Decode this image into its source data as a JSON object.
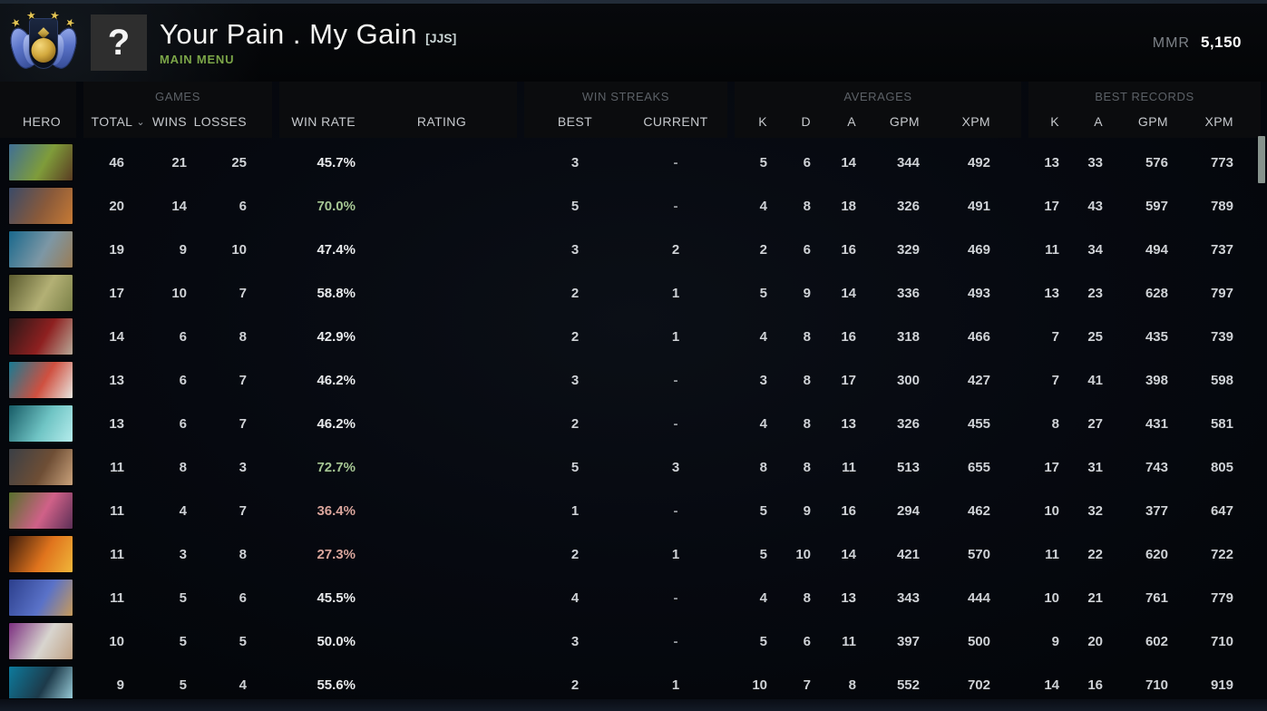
{
  "header": {
    "player_name": "Your Pain . My Gain",
    "player_tag": "[JJS]",
    "nav_label": "MAIN MENU",
    "avatar_glyph": "?",
    "mmr_label": "MMR",
    "mmr_value": "5,150",
    "medal": {
      "name": "rank-medal",
      "stars": 4
    }
  },
  "table": {
    "groups": {
      "games": "GAMES",
      "win_streaks": "WIN STREAKS",
      "averages": "AVERAGES",
      "best_records": "BEST RECORDS"
    },
    "columns": {
      "hero": "HERO",
      "total": "TOTAL",
      "wins": "WINS",
      "losses": "LOSSES",
      "win_rate": "WIN RATE",
      "rating": "RATING",
      "best": "BEST",
      "current": "CURRENT",
      "k": "K",
      "d": "D",
      "a": "A",
      "gpm": "GPM",
      "xpm": "XPM"
    },
    "sort": {
      "column": "total",
      "indicator": "⌄"
    },
    "rows": [
      {
        "hero": "hoodwink",
        "portrait": [
          "#3f6f95",
          "#7f9c3a",
          "#5a3c22"
        ],
        "total": 46,
        "wins": 21,
        "losses": 25,
        "win_rate": "45.7%",
        "win_rate_pct": 45.7,
        "tone": "neu",
        "best": 3,
        "current": "-",
        "k": 5,
        "d": 6,
        "a": 14,
        "gpm": 344,
        "xpm": 492,
        "bk": 13,
        "ba": 33,
        "bgpm": 576,
        "bxpm": 773
      },
      {
        "hero": "marci",
        "portrait": [
          "#3a4a68",
          "#8a5a3a",
          "#c77a35"
        ],
        "total": 20,
        "wins": 14,
        "losses": 6,
        "win_rate": "70.0%",
        "win_rate_pct": 70.0,
        "tone": "pos",
        "best": 5,
        "current": "-",
        "k": 4,
        "d": 8,
        "a": 18,
        "gpm": 326,
        "xpm": 491,
        "bk": 17,
        "ba": 43,
        "bgpm": 597,
        "bxpm": 789
      },
      {
        "hero": "magnus",
        "portrait": [
          "#19688c",
          "#7d97a5",
          "#9a7c55"
        ],
        "total": 19,
        "wins": 9,
        "losses": 10,
        "win_rate": "47.4%",
        "win_rate_pct": 47.4,
        "tone": "neu",
        "best": 3,
        "current": 2,
        "k": 2,
        "d": 6,
        "a": 16,
        "gpm": 329,
        "xpm": 469,
        "bk": 11,
        "ba": 34,
        "bgpm": 494,
        "bxpm": 737
      },
      {
        "hero": "pudge",
        "portrait": [
          "#5a5a2e",
          "#b3b075",
          "#7a8047"
        ],
        "total": 17,
        "wins": 10,
        "losses": 7,
        "win_rate": "58.8%",
        "win_rate_pct": 58.8,
        "tone": "neu",
        "best": 2,
        "current": 1,
        "k": 5,
        "d": 9,
        "a": 14,
        "gpm": 336,
        "xpm": 493,
        "bk": 13,
        "ba": 23,
        "bgpm": 628,
        "bxpm": 797
      },
      {
        "hero": "bloodseeker",
        "portrait": [
          "#2a1818",
          "#8e2020",
          "#b8a998"
        ],
        "total": 14,
        "wins": 6,
        "losses": 8,
        "win_rate": "42.9%",
        "win_rate_pct": 42.9,
        "tone": "neu",
        "best": 2,
        "current": 1,
        "k": 4,
        "d": 8,
        "a": 16,
        "gpm": 318,
        "xpm": 466,
        "bk": 7,
        "ba": 25,
        "bgpm": 435,
        "bxpm": 739
      },
      {
        "hero": "troll-warlord",
        "portrait": [
          "#177a93",
          "#cf5040",
          "#e8e6e0"
        ],
        "total": 13,
        "wins": 6,
        "losses": 7,
        "win_rate": "46.2%",
        "win_rate_pct": 46.2,
        "tone": "neu",
        "best": 3,
        "current": "-",
        "k": 3,
        "d": 8,
        "a": 17,
        "gpm": 300,
        "xpm": 427,
        "bk": 7,
        "ba": 41,
        "bgpm": 398,
        "bxpm": 598
      },
      {
        "hero": "winter-wyvern",
        "portrait": [
          "#175b66",
          "#6fc4c4",
          "#b5ecec"
        ],
        "total": 13,
        "wins": 6,
        "losses": 7,
        "win_rate": "46.2%",
        "win_rate_pct": 46.2,
        "tone": "neu",
        "best": 2,
        "current": "-",
        "k": 4,
        "d": 8,
        "a": 13,
        "gpm": 326,
        "xpm": 455,
        "bk": 8,
        "ba": 27,
        "bgpm": 431,
        "bxpm": 581
      },
      {
        "hero": "kunkka",
        "portrait": [
          "#3a3f46",
          "#6e4e35",
          "#caa27b"
        ],
        "total": 11,
        "wins": 8,
        "losses": 3,
        "win_rate": "72.7%",
        "win_rate_pct": 72.7,
        "tone": "pos",
        "best": 5,
        "current": 3,
        "k": 8,
        "d": 8,
        "a": 11,
        "gpm": 513,
        "xpm": 655,
        "bk": 17,
        "ba": 31,
        "bgpm": 743,
        "bxpm": 805
      },
      {
        "hero": "dark-willow",
        "portrait": [
          "#57702c",
          "#d06188",
          "#5c2f56"
        ],
        "total": 11,
        "wins": 4,
        "losses": 7,
        "win_rate": "36.4%",
        "win_rate_pct": 36.4,
        "tone": "neg",
        "best": 1,
        "current": "-",
        "k": 5,
        "d": 9,
        "a": 16,
        "gpm": 294,
        "xpm": 462,
        "bk": 10,
        "ba": 32,
        "bgpm": 377,
        "bxpm": 647
      },
      {
        "hero": "clinkz",
        "portrait": [
          "#3a1b0c",
          "#e0741d",
          "#f0b73a"
        ],
        "total": 11,
        "wins": 3,
        "losses": 8,
        "win_rate": "27.3%",
        "win_rate_pct": 27.3,
        "tone": "neg",
        "best": 2,
        "current": 1,
        "k": 5,
        "d": 10,
        "a": 14,
        "gpm": 421,
        "xpm": 570,
        "bk": 11,
        "ba": 22,
        "bgpm": 620,
        "bxpm": 722
      },
      {
        "hero": "ogre-magi",
        "portrait": [
          "#2c3f8c",
          "#5a72c8",
          "#c89a5a"
        ],
        "total": 11,
        "wins": 5,
        "losses": 6,
        "win_rate": "45.5%",
        "win_rate_pct": 45.5,
        "tone": "neu",
        "best": 4,
        "current": "-",
        "k": 4,
        "d": 8,
        "a": 13,
        "gpm": 343,
        "xpm": 444,
        "bk": 10,
        "ba": 21,
        "bgpm": 761,
        "bxpm": 779
      },
      {
        "hero": "invoker",
        "portrait": [
          "#7c2f80",
          "#d8d5cf",
          "#bfa184"
        ],
        "total": 10,
        "wins": 5,
        "losses": 5,
        "win_rate": "50.0%",
        "win_rate_pct": 50.0,
        "tone": "neu",
        "best": 3,
        "current": "-",
        "k": 5,
        "d": 6,
        "a": 11,
        "gpm": 397,
        "xpm": 500,
        "bk": 9,
        "ba": 20,
        "bgpm": 602,
        "bxpm": 710
      },
      {
        "hero": "sven",
        "portrait": [
          "#0d7a9c",
          "#1d3a4a",
          "#9fd4e0"
        ],
        "total": 9,
        "wins": 5,
        "losses": 4,
        "win_rate": "55.6%",
        "win_rate_pct": 55.6,
        "tone": "neu",
        "best": 2,
        "current": 1,
        "k": 10,
        "d": 7,
        "a": 8,
        "gpm": 552,
        "xpm": 702,
        "bk": 14,
        "ba": 16,
        "bgpm": 710,
        "bxpm": 919
      }
    ]
  },
  "colors": {
    "win_rate_positive": "#a5c693",
    "win_rate_negative": "#d9a59c",
    "win_rate_neutral": "#e8eaec",
    "bar_fill": "#5d8093",
    "bar_track": "#010202",
    "menu_green": "#7ca648"
  }
}
